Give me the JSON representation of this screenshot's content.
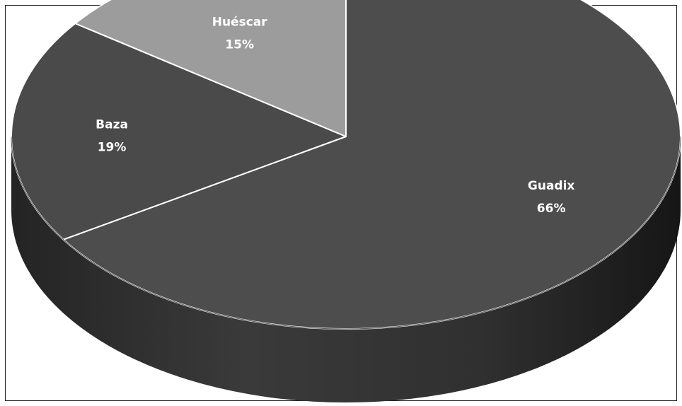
{
  "chart_data": {
    "type": "pie",
    "title": "",
    "slices": [
      {
        "label": "Guadix",
        "value": 66,
        "display": "66%",
        "color": "#4d4d4d",
        "side_color": "#2e2e2e"
      },
      {
        "label": "Baza",
        "value": 19,
        "display": "19%",
        "color": "#4a4a4a",
        "side_color": "#2a2a2a"
      },
      {
        "label": "Huéscar",
        "value": 15,
        "display": "15%",
        "color": "#9c9c9c",
        "side_color": "#6e6e6e"
      }
    ],
    "start_angle": "12 o'clock",
    "direction": "clockwise",
    "style": "3d"
  }
}
